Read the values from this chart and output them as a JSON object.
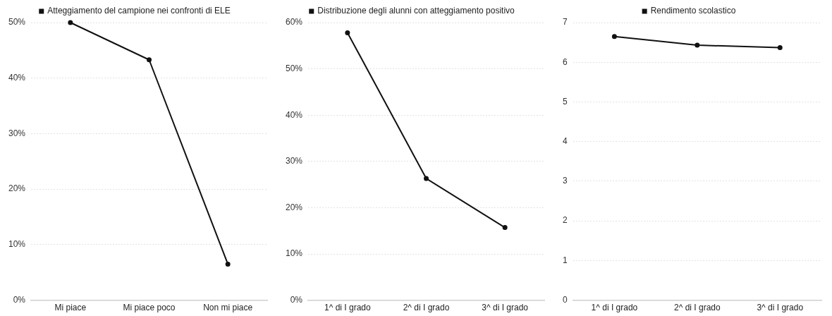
{
  "chart_data": [
    {
      "type": "line",
      "categories": [
        "Mi piace",
        "Mi piace poco",
        "Non mi piace"
      ],
      "series": [
        {
          "name": "Atteggiamento del campione nei confronti di ELE",
          "color": "#111111",
          "values": [
            50,
            43.3,
            6.5
          ]
        }
      ],
      "ylim": [
        0,
        50
      ],
      "yticks": [
        {
          "value": 0,
          "label": "0%"
        },
        {
          "value": 10,
          "label": "10%"
        },
        {
          "value": 20,
          "label": "20%"
        },
        {
          "value": 30,
          "label": "30%"
        },
        {
          "value": 40,
          "label": "40%"
        },
        {
          "value": 50,
          "label": "50%"
        }
      ],
      "grid": "y",
      "legend": "top",
      "marker": "circle",
      "line_style": "solid"
    },
    {
      "type": "line",
      "categories": [
        "1^ di I grado",
        "2^ di I grado",
        "3^ di I grado"
      ],
      "series": [
        {
          "name": "Distribuzione degli alunni con atteggiamento positivo",
          "color": "#111111",
          "values": [
            57.8,
            26.3,
            15.7
          ]
        }
      ],
      "ylim": [
        0,
        60
      ],
      "yticks": [
        {
          "value": 0,
          "label": "0%"
        },
        {
          "value": 10,
          "label": "10%"
        },
        {
          "value": 20,
          "label": "20%"
        },
        {
          "value": 30,
          "label": "30%"
        },
        {
          "value": 40,
          "label": "40%"
        },
        {
          "value": 50,
          "label": "50%"
        },
        {
          "value": 60,
          "label": "60%"
        }
      ],
      "grid": "y",
      "legend": "top",
      "marker": "circle",
      "line_style": "solid"
    },
    {
      "type": "line",
      "categories": [
        "1^ di I grado",
        "2^ di I grado",
        "3^ di I grado"
      ],
      "series": [
        {
          "name": "Rendimento scolastico",
          "color": "#111111",
          "values": [
            6.65,
            6.43,
            6.37
          ]
        }
      ],
      "ylim": [
        0,
        7
      ],
      "yticks": [
        0,
        1,
        2,
        3,
        4,
        5,
        6,
        7
      ],
      "grid": "y",
      "legend": "top",
      "marker": "circle",
      "line_style": "solid"
    }
  ]
}
